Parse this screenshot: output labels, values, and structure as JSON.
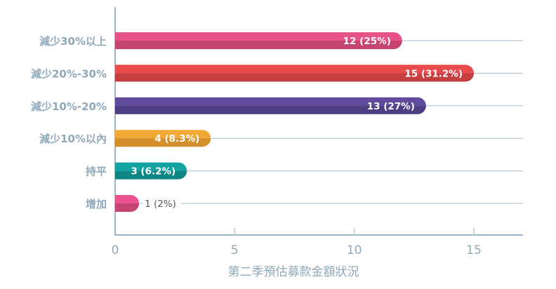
{
  "chart_data": {
    "type": "bar",
    "orientation": "horizontal",
    "title": "",
    "xlabel": "第二季預估募款金額狀況",
    "ylabel": "",
    "xlim": [
      0,
      17
    ],
    "xticks": [
      0,
      5,
      10,
      15
    ],
    "grid": true,
    "categories": [
      "減少30%以上",
      "減少20%-30%",
      "減少10%-20%",
      "減少10%以內",
      "持平",
      "增加"
    ],
    "values": [
      12,
      15,
      13,
      4,
      3,
      1
    ],
    "data_labels": [
      "12 (25%)",
      "15 (31.2%)",
      "13 (27%)",
      "4 (8.3%)",
      "3 (6.2%)",
      "1 (2%)"
    ],
    "colors": [
      {
        "top": "#e8528a",
        "bottom": "#c5436f"
      },
      {
        "top": "#e84b4b",
        "bottom": "#c43d3f"
      },
      {
        "top": "#604a9c",
        "bottom": "#4f3d84"
      },
      {
        "top": "#f2a935",
        "bottom": "#d28f2a"
      },
      {
        "top": "#13a3a3",
        "bottom": "#0e8585"
      },
      {
        "top": "#ea5290",
        "bottom": "#c44472"
      }
    ],
    "axis_color": "#9bb3c3",
    "label_color": "#8fa9ba"
  }
}
